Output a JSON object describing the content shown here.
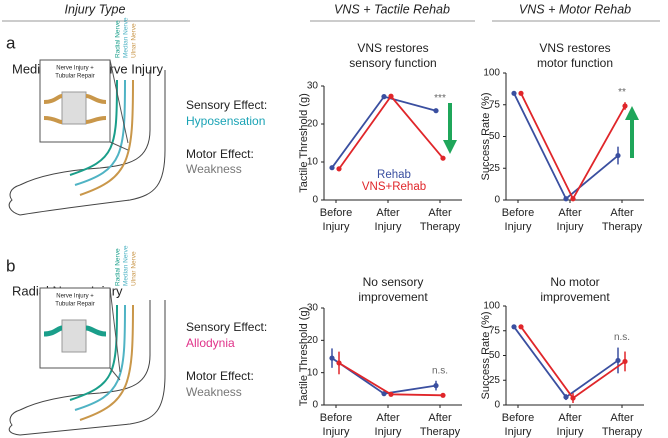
{
  "headers": [
    "Injury Type",
    "VNS + Tactile Rehab",
    "VNS + Motor Rehab"
  ],
  "rows": [
    {
      "label": "a",
      "injury": "Median/Ulnar Nerve Injury",
      "sensory_label": "Sensory Effect:",
      "sensory_effect": "Hyposensation",
      "motor_label": "Motor Effect:",
      "motor_effect": "Weakness",
      "diagram": {
        "box_label": [
          "Nerve Injury +",
          "Tubular Repair"
        ],
        "nerves": [
          "Radial Nerve",
          "Median Nerve",
          "Ulnar Nerve"
        ]
      }
    },
    {
      "label": "b",
      "injury": "Radial Nerve Injury",
      "sensory_label": "Sensory Effect:",
      "sensory_effect": "Allodynia",
      "motor_label": "Motor Effect:",
      "motor_effect": "Weakness",
      "diagram": {
        "box_label": [
          "Nerve Injury +",
          "Tubular Repair"
        ],
        "nerves": [
          "Radial Nerve",
          "Median Nerve",
          "Ulnar Nerve"
        ]
      }
    }
  ],
  "chart_data": [
    {
      "type": "line",
      "title": "VNS restores sensory function",
      "ylabel": "Tactile Threshold (g)",
      "categories": [
        "Before Injury",
        "After Injury",
        "After Therapy"
      ],
      "series": [
        {
          "name": "Rehab",
          "color": "#3a4fa0",
          "values": [
            8.5,
            27.2,
            23.5
          ],
          "errors": [
            0.4,
            0.6,
            0.6
          ]
        },
        {
          "name": "VNS+Rehab",
          "color": "#e0262a",
          "values": [
            8.2,
            27.3,
            11
          ],
          "errors": [
            0.4,
            0.6,
            0.4
          ]
        }
      ],
      "ylim": [
        0,
        30
      ],
      "yticks": [
        0,
        10,
        20,
        30
      ],
      "annotation": "***",
      "legend": true
    },
    {
      "type": "line",
      "title": "VNS restores motor function",
      "ylabel": "Success Rate (%)",
      "categories": [
        "Before Injury",
        "After Injury",
        "After Therapy"
      ],
      "series": [
        {
          "color": "#3a4fa0",
          "values": [
            84,
            1,
            35
          ],
          "errors": [
            1,
            1,
            7
          ]
        },
        {
          "color": "#e0262a",
          "values": [
            84,
            1,
            74
          ],
          "errors": [
            1,
            1,
            3
          ]
        }
      ],
      "ylim": [
        0,
        100
      ],
      "yticks": [
        0,
        25,
        50,
        75,
        100
      ],
      "annotation": "**",
      "legend": false
    },
    {
      "type": "line",
      "title": "No sensory improvement",
      "ylabel": "Tactile Threshold (g)",
      "categories": [
        "Before Injury",
        "After Injury",
        "After Therapy"
      ],
      "series": [
        {
          "color": "#3a4fa0",
          "values": [
            14.5,
            3.5,
            6
          ],
          "errors": [
            3,
            0.7,
            1.5
          ]
        },
        {
          "color": "#e0262a",
          "values": [
            13,
            3.3,
            3
          ],
          "errors": [
            3.5,
            0.7,
            0.5
          ]
        }
      ],
      "ylim": [
        0,
        30
      ],
      "yticks": [
        0,
        10,
        20,
        30
      ],
      "annotation": "n.s.",
      "legend": false
    },
    {
      "type": "line",
      "title": "No motor improvement",
      "ylabel": "Success Rate (%)",
      "categories": [
        "Before Injury",
        "After Injury",
        "After Therapy"
      ],
      "series": [
        {
          "color": "#3a4fa0",
          "values": [
            79,
            8,
            45
          ],
          "errors": [
            1,
            3,
            13
          ]
        },
        {
          "color": "#e0262a",
          "values": [
            79,
            7,
            44
          ],
          "errors": [
            1,
            5,
            10
          ]
        }
      ],
      "ylim": [
        0,
        100
      ],
      "yticks": [
        0,
        25,
        50,
        75,
        100
      ],
      "annotation": "n.s.",
      "legend": false
    }
  ]
}
